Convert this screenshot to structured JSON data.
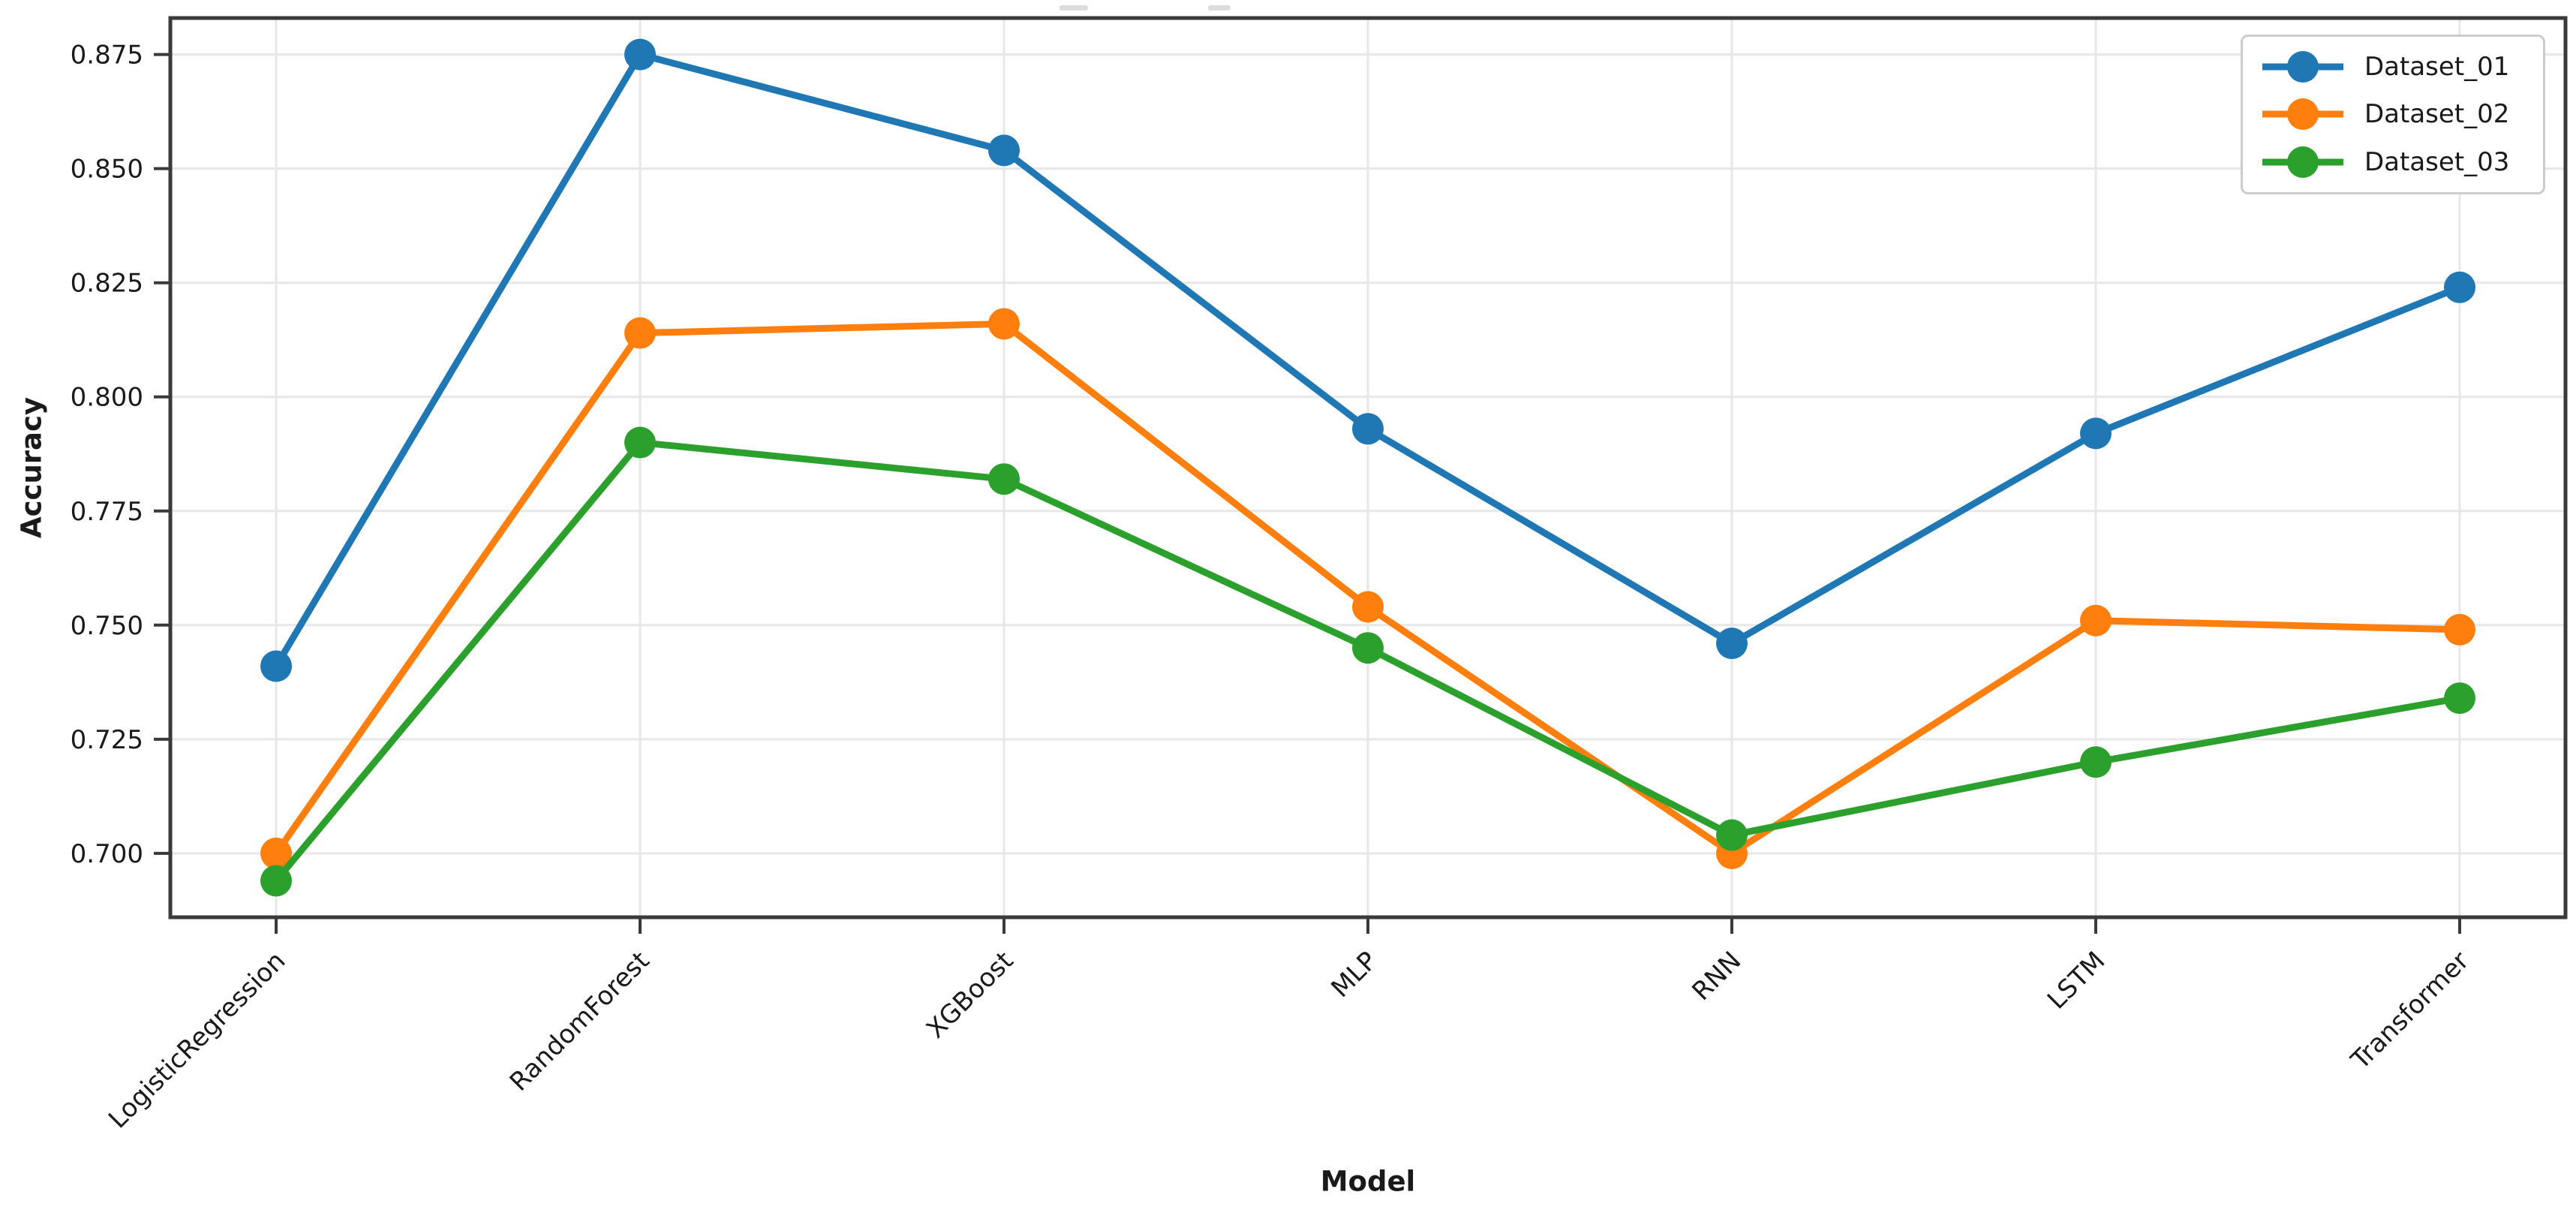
{
  "chart_data": {
    "type": "line",
    "title": "",
    "xlabel": "Model",
    "ylabel": "Accuracy",
    "categories": [
      "LogisticRegression",
      "RandomForest",
      "XGBoost",
      "MLP",
      "RNN",
      "LSTM",
      "Transformer"
    ],
    "series": [
      {
        "name": "Dataset_01",
        "color": "#1f77b4",
        "values": [
          0.741,
          0.875,
          0.854,
          0.793,
          0.746,
          0.792,
          0.824
        ]
      },
      {
        "name": "Dataset_02",
        "color": "#ff7f0e",
        "values": [
          0.7,
          0.814,
          0.816,
          0.754,
          0.7,
          0.751,
          0.749
        ]
      },
      {
        "name": "Dataset_03",
        "color": "#2ca02c",
        "values": [
          0.694,
          0.79,
          0.782,
          0.745,
          0.704,
          0.72,
          0.734
        ]
      }
    ],
    "yticks": [
      0.875,
      0.85,
      0.825,
      0.8,
      0.775,
      0.75,
      0.725,
      0.7
    ],
    "ytick_labels": [
      "0.875",
      "0.850",
      "0.825",
      "0.800",
      "0.775",
      "0.750",
      "0.725",
      "0.700"
    ],
    "ylim": [
      0.686,
      0.883
    ],
    "grid": true,
    "legend_position": "upper right",
    "marker": "circle",
    "style_colors": {
      "grid": "#e7e7e7",
      "spine": "#3a3a3a",
      "tick_text": "#1a1a1a",
      "legend_border": "#cccccc"
    }
  }
}
